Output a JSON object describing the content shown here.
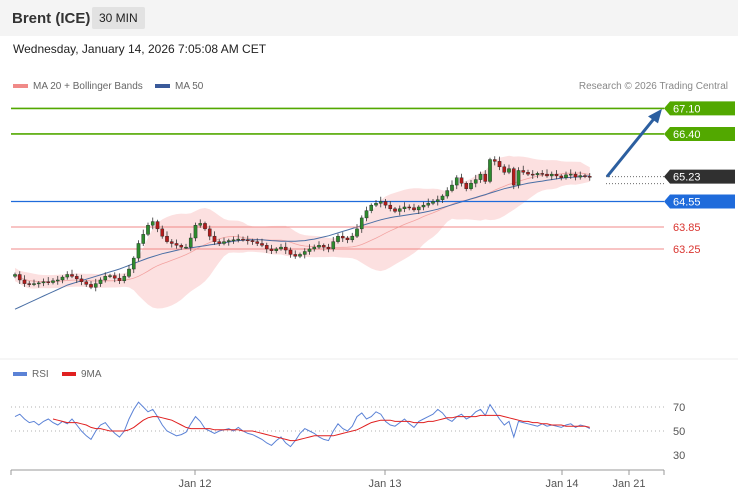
{
  "header": {
    "instrument": "Brent (ICE)",
    "timeframe": "30 MIN"
  },
  "timestamp": "Wednesday, January 14, 2026 7:05:08 AM CET",
  "credit": "Research © 2026 Trading Central",
  "colors": {
    "resistance": "#52a800",
    "support": "#1f6bdb",
    "pivot": "#f08a88",
    "current": "#303030",
    "ma50": "#4a6fa5",
    "bands_fill": "#fbd6d6",
    "up_candle": "#2e8a2e",
    "down_candle": "#b31b1b",
    "arrow": "#2c5fa0",
    "rsi": "#5b82d6",
    "rsi_ma": "#e02020"
  },
  "chart_data": [
    {
      "type": "candlestick",
      "legend": [
        {
          "name": "MA 20 + Bollinger Bands",
          "color": "#f08a88"
        },
        {
          "name": "MA 50",
          "color": "#3a5a9a"
        }
      ],
      "x_ticks": [
        "Jan 12",
        "Jan 13",
        "Jan 14",
        "Jan 21"
      ],
      "levels": [
        {
          "value": 67.1,
          "label": "67.10",
          "kind": "resistance"
        },
        {
          "value": 66.4,
          "label": "66.40",
          "kind": "resistance"
        },
        {
          "value": 65.23,
          "label": "65.23",
          "kind": "current"
        },
        {
          "value": 64.55,
          "label": "64.55",
          "kind": "support"
        },
        {
          "value": 63.85,
          "label": "63.85",
          "kind": "pivot"
        },
        {
          "value": 63.25,
          "label": "63.25",
          "kind": "pivot"
        }
      ],
      "close": [
        62.55,
        62.4,
        62.3,
        62.28,
        62.3,
        62.32,
        62.35,
        62.33,
        62.38,
        62.4,
        62.48,
        62.55,
        62.5,
        62.43,
        62.35,
        62.28,
        62.2,
        62.3,
        62.4,
        62.5,
        62.52,
        62.45,
        62.38,
        62.5,
        62.7,
        63.0,
        63.4,
        63.65,
        63.9,
        64.0,
        63.8,
        63.6,
        63.45,
        63.4,
        63.35,
        63.3,
        63.3,
        63.55,
        63.9,
        63.95,
        63.8,
        63.6,
        63.45,
        63.4,
        63.45,
        63.48,
        63.5,
        63.52,
        63.5,
        63.48,
        63.45,
        63.4,
        63.35,
        63.25,
        63.2,
        63.25,
        63.3,
        63.22,
        63.1,
        63.05,
        63.1,
        63.18,
        63.25,
        63.3,
        63.35,
        63.3,
        63.25,
        63.45,
        63.6,
        63.55,
        63.5,
        63.6,
        63.8,
        64.1,
        64.3,
        64.45,
        64.5,
        64.55,
        64.45,
        64.35,
        64.28,
        64.35,
        64.4,
        64.38,
        64.32,
        64.4,
        64.45,
        64.5,
        64.55,
        64.6,
        64.7,
        64.85,
        65.0,
        65.2,
        65.05,
        64.9,
        65.05,
        65.15,
        65.3,
        65.1,
        65.7,
        65.65,
        65.5,
        65.35,
        65.45,
        65.0,
        65.4,
        65.35,
        65.3,
        65.28,
        65.32,
        65.3,
        65.25,
        65.3,
        65.25,
        65.2,
        65.28,
        65.3,
        65.22,
        65.26,
        65.24,
        65.23
      ],
      "ma50": [
        61.6,
        61.66,
        61.72,
        61.78,
        61.84,
        61.9,
        61.96,
        62.02,
        62.08,
        62.14,
        62.2,
        62.26,
        62.3,
        62.34,
        62.38,
        62.42,
        62.46,
        62.5,
        62.54,
        62.58,
        62.62,
        62.66,
        62.7,
        62.75,
        62.8,
        62.85,
        62.9,
        62.95,
        63.0,
        63.04,
        63.08,
        63.12,
        63.15,
        63.18,
        63.21,
        63.24,
        63.26,
        63.28,
        63.3,
        63.32,
        63.34,
        63.36,
        63.38,
        63.4,
        63.42,
        63.44,
        63.46,
        63.48,
        63.49,
        63.5,
        63.5,
        63.5,
        63.5,
        63.49,
        63.48,
        63.47,
        63.46,
        63.46,
        63.46,
        63.46,
        63.47,
        63.48,
        63.5,
        63.52,
        63.55,
        63.58,
        63.61,
        63.65,
        63.69,
        63.73,
        63.77,
        63.81,
        63.85,
        63.89,
        63.93,
        63.97,
        64.01,
        64.05,
        64.08,
        64.11,
        64.13,
        64.15,
        64.17,
        64.19,
        64.21,
        64.23,
        64.25,
        64.28,
        64.31,
        64.34,
        64.38,
        64.42,
        64.46,
        64.5,
        64.54,
        64.58,
        64.62,
        64.66,
        64.7,
        64.74,
        64.78,
        64.82,
        64.86,
        64.9,
        64.93,
        64.96,
        64.99,
        65.02,
        65.05,
        65.07,
        65.09,
        65.11,
        65.13,
        65.15,
        65.17,
        65.19,
        65.2,
        65.21,
        65.22,
        65.23,
        65.24,
        65.25
      ],
      "rsi": [
        62,
        64,
        60,
        57,
        58,
        55,
        58,
        60,
        57,
        55,
        58,
        56,
        60,
        55,
        50,
        46,
        43,
        50,
        55,
        57,
        52,
        48,
        45,
        50,
        60,
        68,
        74,
        70,
        66,
        68,
        62,
        55,
        50,
        48,
        46,
        47,
        49,
        56,
        62,
        58,
        52,
        50,
        48,
        50,
        51,
        52,
        50,
        53,
        50,
        48,
        47,
        45,
        43,
        40,
        38,
        42,
        45,
        40,
        37,
        42,
        48,
        52,
        50,
        48,
        45,
        43,
        42,
        50,
        56,
        52,
        50,
        54,
        62,
        65,
        60,
        62,
        66,
        64,
        58,
        55,
        54,
        57,
        60,
        56,
        53,
        58,
        60,
        62,
        64,
        68,
        65,
        60,
        58,
        62,
        64,
        60,
        62,
        66,
        68,
        63,
        72,
        66,
        60,
        55,
        58,
        45,
        58,
        57,
        56,
        55,
        54,
        56,
        54,
        55,
        54,
        53,
        55,
        56,
        53,
        55,
        54,
        52
      ],
      "rsi_ma": [
        null,
        null,
        null,
        null,
        null,
        null,
        null,
        null,
        60,
        59,
        58,
        57,
        57,
        57,
        56,
        55,
        53,
        52,
        52,
        51,
        50,
        50,
        50,
        50,
        51,
        53,
        56,
        59,
        61,
        62,
        62,
        61,
        60,
        59,
        57,
        55,
        53,
        52,
        52,
        52,
        52,
        52,
        51,
        51,
        51,
        51,
        51,
        51,
        50,
        50,
        50,
        49,
        48,
        47,
        46,
        45,
        44,
        43,
        42,
        42,
        43,
        44,
        45,
        46,
        46,
        46,
        46,
        46,
        47,
        48,
        49,
        50,
        51,
        53,
        55,
        57,
        58,
        59,
        59,
        59,
        58,
        58,
        58,
        58,
        57,
        57,
        57,
        58,
        58,
        59,
        60,
        61,
        61,
        62,
        62,
        62,
        62,
        62,
        63,
        63,
        63,
        63,
        63,
        62,
        61,
        60,
        59,
        58,
        58,
        57,
        57,
        56,
        56,
        55,
        55,
        55,
        54,
        54,
        54,
        54,
        54,
        53
      ],
      "rsi_levels": [
        70,
        50,
        30
      ]
    }
  ]
}
